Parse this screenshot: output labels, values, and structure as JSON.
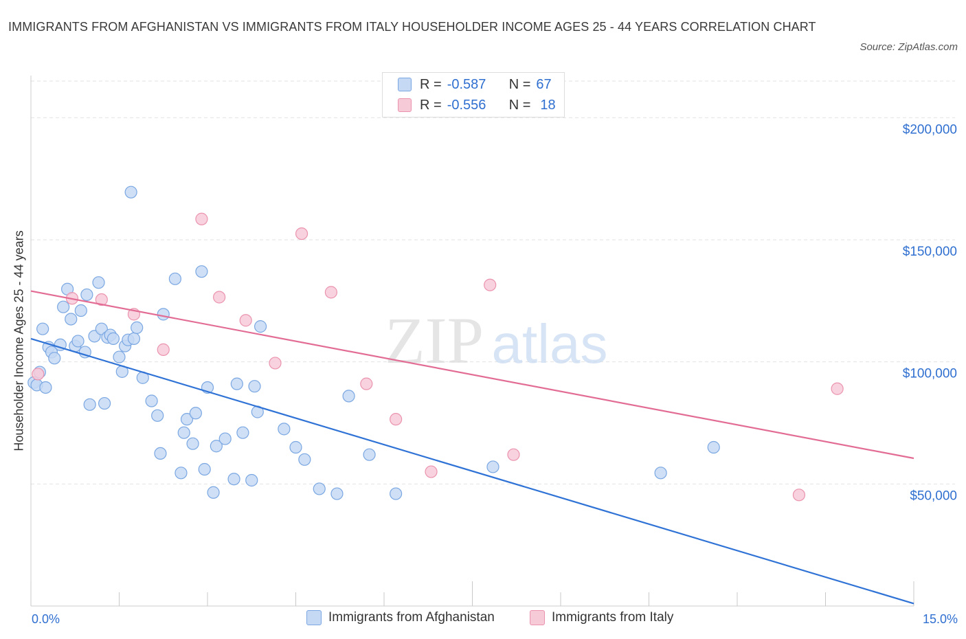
{
  "title": "IMMIGRANTS FROM AFGHANISTAN VS IMMIGRANTS FROM ITALY HOUSEHOLDER INCOME AGES 25 - 44 YEARS CORRELATION CHART",
  "source": "Source: ZipAtlas.com",
  "watermark": {
    "zip": "ZIP",
    "atlas": "atlas"
  },
  "colors": {
    "afghanistan_fill": "#c5d9f5",
    "afghanistan_stroke": "#7aa7e2",
    "afghanistan_line": "#2f72d6",
    "italy_fill": "#f7cad8",
    "italy_stroke": "#eb93ae",
    "italy_line": "#e26c94",
    "tick_label": "#2f6fd0",
    "grid": "#e2e2e2"
  },
  "legend_top": [
    {
      "r_label": "R =",
      "r_value": "-0.587",
      "n_label": "N =",
      "n_value": "67"
    },
    {
      "r_label": "R =",
      "r_value": "-0.556",
      "n_label": "N =",
      "n_value": "18"
    }
  ],
  "chart_data": {
    "type": "scatter",
    "title": "IMMIGRANTS FROM AFGHANISTAN VS IMMIGRANTS FROM ITALY HOUSEHOLDER INCOME AGES 25 - 44 YEARS CORRELATION CHART",
    "xlabel": "",
    "ylabel": "Householder Income Ages 25 - 44 years",
    "xlim": [
      0,
      15
    ],
    "ylim": [
      0,
      200000
    ],
    "x_tick_labels": [
      "0.0%",
      "15.0%"
    ],
    "y_ticks": [
      50000,
      100000,
      150000,
      200000
    ],
    "y_tick_labels": [
      "$50,000",
      "$100,000",
      "$150,000",
      "$200,000"
    ],
    "grid": true,
    "legend_position": "bottom",
    "series": [
      {
        "name": "Immigrants from Afghanistan",
        "r": -0.587,
        "n": 67,
        "trend": {
          "x": [
            0,
            15
          ],
          "y": [
            109500,
            1000
          ]
        },
        "points": [
          [
            0.05,
            91500
          ],
          [
            0.1,
            90500
          ],
          [
            0.15,
            95800
          ],
          [
            0.25,
            89500
          ],
          [
            0.2,
            113500
          ],
          [
            0.3,
            106000
          ],
          [
            0.35,
            104000
          ],
          [
            0.4,
            101500
          ],
          [
            0.5,
            107000
          ],
          [
            0.55,
            122500
          ],
          [
            0.62,
            129800
          ],
          [
            0.68,
            117500
          ],
          [
            0.75,
            106500
          ],
          [
            0.8,
            108500
          ],
          [
            0.85,
            121000
          ],
          [
            0.92,
            104000
          ],
          [
            0.95,
            127500
          ],
          [
            1.0,
            82500
          ],
          [
            1.08,
            110500
          ],
          [
            1.15,
            132500
          ],
          [
            1.2,
            113500
          ],
          [
            1.25,
            83000
          ],
          [
            1.3,
            110000
          ],
          [
            1.35,
            111000
          ],
          [
            1.4,
            109500
          ],
          [
            1.5,
            102000
          ],
          [
            1.55,
            96000
          ],
          [
            1.6,
            106500
          ],
          [
            1.65,
            109000
          ],
          [
            1.7,
            169500
          ],
          [
            1.75,
            109500
          ],
          [
            1.8,
            114000
          ],
          [
            1.9,
            93500
          ],
          [
            2.05,
            84000
          ],
          [
            2.15,
            78000
          ],
          [
            2.2,
            62500
          ],
          [
            2.25,
            119500
          ],
          [
            2.45,
            134000
          ],
          [
            2.55,
            54500
          ],
          [
            2.6,
            71000
          ],
          [
            2.65,
            76500
          ],
          [
            2.75,
            66500
          ],
          [
            2.8,
            79000
          ],
          [
            2.9,
            137000
          ],
          [
            2.95,
            56000
          ],
          [
            3.0,
            89500
          ],
          [
            3.1,
            46500
          ],
          [
            3.15,
            65500
          ],
          [
            3.3,
            68500
          ],
          [
            3.45,
            52000
          ],
          [
            3.5,
            91000
          ],
          [
            3.6,
            71000
          ],
          [
            3.75,
            51500
          ],
          [
            3.8,
            90000
          ],
          [
            3.85,
            79500
          ],
          [
            3.9,
            114500
          ],
          [
            4.3,
            72500
          ],
          [
            4.5,
            65000
          ],
          [
            4.65,
            60000
          ],
          [
            4.9,
            48000
          ],
          [
            5.2,
            46000
          ],
          [
            5.4,
            86000
          ],
          [
            5.75,
            62000
          ],
          [
            6.2,
            46000
          ],
          [
            7.85,
            57000
          ],
          [
            10.7,
            54500
          ],
          [
            11.6,
            65000
          ]
        ]
      },
      {
        "name": "Immigrants from Italy",
        "r": -0.556,
        "n": 18,
        "trend": {
          "x": [
            0,
            15
          ],
          "y": [
            129000,
            60500
          ]
        },
        "points": [
          [
            0.12,
            95000
          ],
          [
            0.7,
            126000
          ],
          [
            1.2,
            125500
          ],
          [
            1.75,
            119500
          ],
          [
            2.25,
            105000
          ],
          [
            2.9,
            158500
          ],
          [
            3.2,
            126500
          ],
          [
            3.65,
            117000
          ],
          [
            4.15,
            99500
          ],
          [
            4.6,
            152500
          ],
          [
            5.1,
            128500
          ],
          [
            5.7,
            91000
          ],
          [
            6.2,
            76500
          ],
          [
            6.8,
            55000
          ],
          [
            7.8,
            131500
          ],
          [
            8.2,
            62000
          ],
          [
            13.05,
            45500
          ],
          [
            13.7,
            89000
          ]
        ]
      }
    ]
  }
}
